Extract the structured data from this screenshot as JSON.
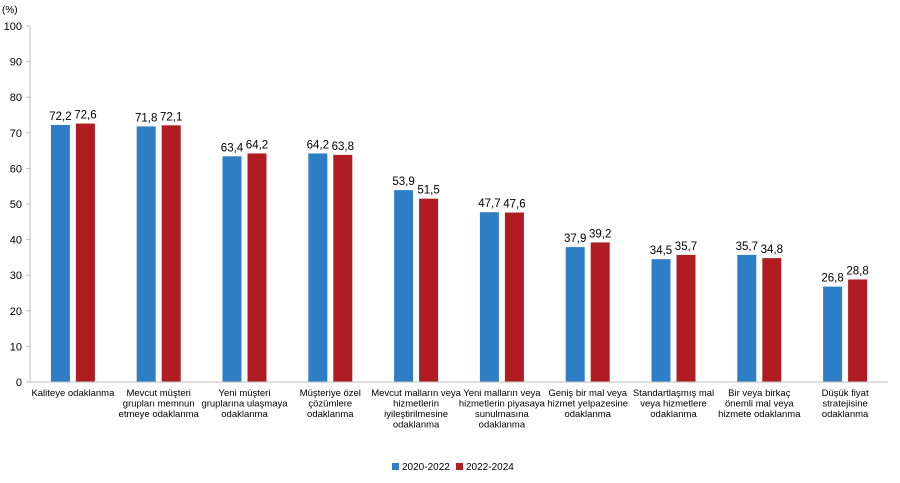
{
  "chart_data": {
    "type": "bar",
    "ylabel": "(%)",
    "ylim": [
      0,
      100
    ],
    "yticks": [
      0,
      10,
      20,
      30,
      40,
      50,
      60,
      70,
      80,
      90,
      100
    ],
    "grid": false,
    "legend_position": "bottom",
    "categories": [
      [
        "Kaliteye odaklanma"
      ],
      [
        "Mevcut müşteri",
        "grupları memnun",
        "etmeye odaklanma"
      ],
      [
        "Yeni müşteri",
        "gruplarına ulaşmaya",
        "odaklanma"
      ],
      [
        "Müşteriye özel",
        "çözümlere",
        "odaklanma"
      ],
      [
        "Mevcut malların veya",
        "hizmetlerin",
        "iyileştirilmesine",
        "odaklanma"
      ],
      [
        "Yeni malların veya",
        "hizmetlerin piyasaya",
        "sunulmasına",
        "odaklanma"
      ],
      [
        "Geniş bir mal veya",
        "hizmet yelpazesine",
        "odaklanma"
      ],
      [
        "Standartlaşmış mal",
        "veya  hizmetlere",
        "odaklanma"
      ],
      [
        "Bir veya birkaç",
        "önemli mal veya",
        "hizmete odaklanma"
      ],
      [
        "Düşük fiyat",
        "stratejisine",
        "odaklanma"
      ]
    ],
    "series": [
      {
        "name": "2020-2022",
        "color": "#2e7ec6",
        "values": [
          72.2,
          71.8,
          63.4,
          64.2,
          53.9,
          47.7,
          37.9,
          34.5,
          35.7,
          26.8
        ],
        "labels": [
          "72,2",
          "71,8",
          "63,4",
          "64,2",
          "53,9",
          "47,7",
          "37,9",
          "34,5",
          "35,7",
          "26,8"
        ]
      },
      {
        "name": "2022-2024",
        "color": "#b11c22",
        "values": [
          72.6,
          72.1,
          64.2,
          63.8,
          51.5,
          47.6,
          39.2,
          35.7,
          34.8,
          28.8
        ],
        "labels": [
          "72,6",
          "72,1",
          "64,2",
          "63,8",
          "51,5",
          "47,6",
          "39,2",
          "35,7",
          "34,8",
          "28,8"
        ]
      }
    ]
  }
}
